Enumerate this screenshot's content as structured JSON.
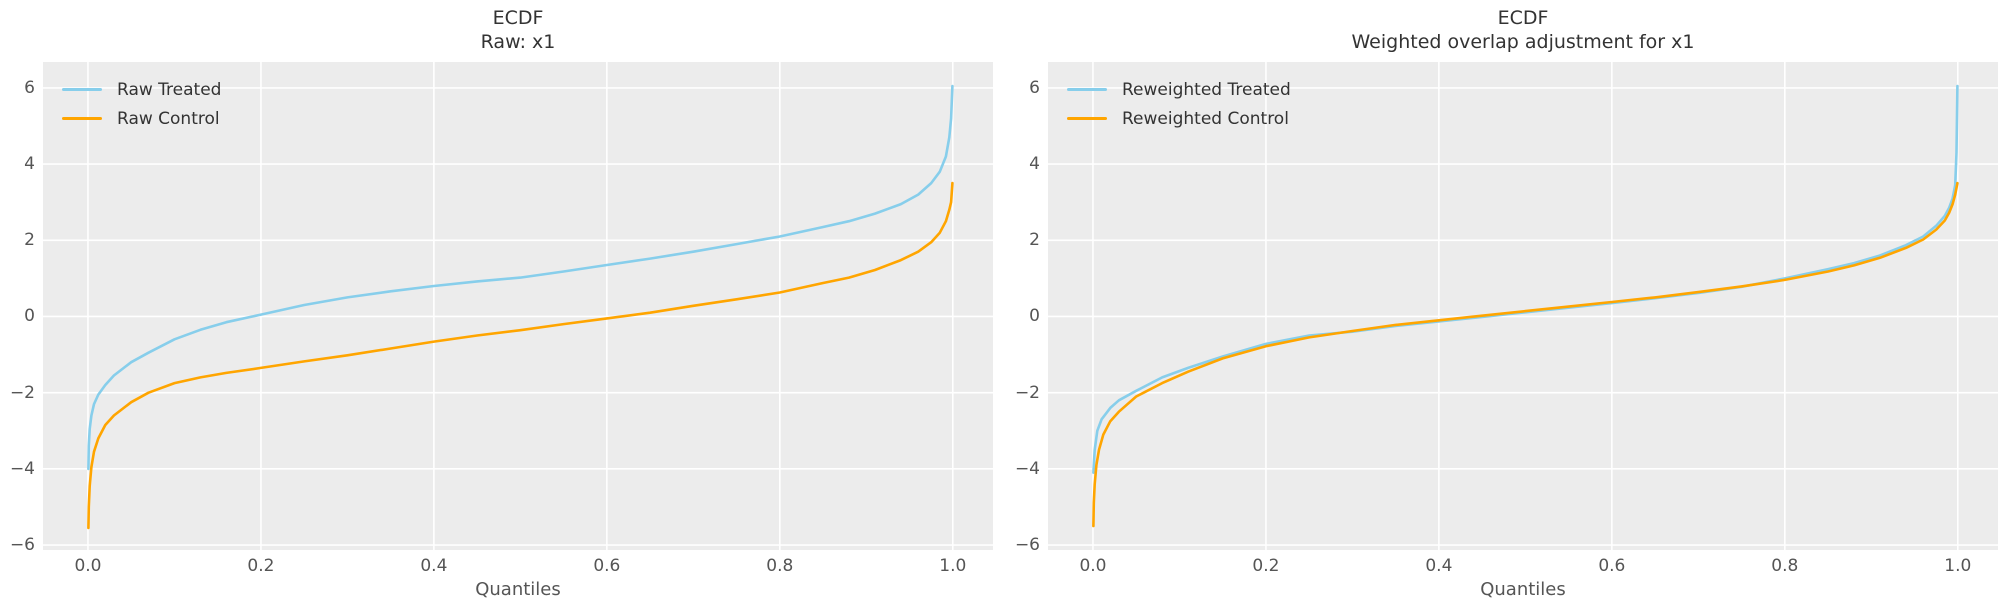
{
  "figure": {
    "background": "#ffffff"
  },
  "style": {
    "axes_background": "#ececec",
    "grid_color": "#ffffff",
    "tick_label_color": "#555555",
    "title_color": "#333333",
    "treated_color": "#87ceeb",
    "control_color": "#ffa500"
  },
  "chart_data": [
    {
      "type": "line",
      "title_lines": [
        "ECDF",
        "Raw: x1"
      ],
      "xlabel": "Quantiles",
      "xlim": [
        -0.052,
        1.0465
      ],
      "ylim": [
        -6.13,
        6.68
      ],
      "grid": true,
      "legend_position": "upper left",
      "x_tick_values": [
        0.0,
        0.2,
        0.4,
        0.6,
        0.8,
        1.0
      ],
      "x_tick_labels": [
        "0.0",
        "0.2",
        "0.4",
        "0.6",
        "0.8",
        "1.0"
      ],
      "y_tick_values": [
        -6,
        -4,
        -2,
        0,
        2,
        4,
        6
      ],
      "y_tick_labels": [
        "−6",
        "−4",
        "−2",
        "0",
        "2",
        "4",
        "6"
      ],
      "series": [
        {
          "name": "Raw Treated",
          "color": "#87ceeb",
          "points": [
            [
              0.0005,
              -4.0
            ],
            [
              0.001,
              -3.4
            ],
            [
              0.002,
              -2.95
            ],
            [
              0.004,
              -2.6
            ],
            [
              0.007,
              -2.3
            ],
            [
              0.012,
              -2.05
            ],
            [
              0.02,
              -1.8
            ],
            [
              0.03,
              -1.55
            ],
            [
              0.05,
              -1.2
            ],
            [
              0.07,
              -0.95
            ],
            [
              0.1,
              -0.6
            ],
            [
              0.13,
              -0.35
            ],
            [
              0.16,
              -0.15
            ],
            [
              0.2,
              0.05
            ],
            [
              0.25,
              0.3
            ],
            [
              0.3,
              0.5
            ],
            [
              0.35,
              0.66
            ],
            [
              0.4,
              0.8
            ],
            [
              0.45,
              0.92
            ],
            [
              0.5,
              1.02
            ],
            [
              0.55,
              1.18
            ],
            [
              0.6,
              1.35
            ],
            [
              0.65,
              1.52
            ],
            [
              0.7,
              1.7
            ],
            [
              0.75,
              1.9
            ],
            [
              0.8,
              2.1
            ],
            [
              0.85,
              2.35
            ],
            [
              0.88,
              2.5
            ],
            [
              0.91,
              2.7
            ],
            [
              0.94,
              2.95
            ],
            [
              0.96,
              3.2
            ],
            [
              0.975,
              3.5
            ],
            [
              0.985,
              3.8
            ],
            [
              0.992,
              4.2
            ],
            [
              0.996,
              4.7
            ],
            [
              0.998,
              5.2
            ],
            [
              0.9995,
              6.05
            ]
          ]
        },
        {
          "name": "Raw Control",
          "color": "#ffa500",
          "points": [
            [
              0.0005,
              -5.55
            ],
            [
              0.001,
              -5.0
            ],
            [
              0.002,
              -4.45
            ],
            [
              0.004,
              -3.95
            ],
            [
              0.007,
              -3.55
            ],
            [
              0.012,
              -3.2
            ],
            [
              0.02,
              -2.85
            ],
            [
              0.03,
              -2.6
            ],
            [
              0.05,
              -2.25
            ],
            [
              0.07,
              -2.0
            ],
            [
              0.1,
              -1.75
            ],
            [
              0.13,
              -1.6
            ],
            [
              0.16,
              -1.48
            ],
            [
              0.2,
              -1.35
            ],
            [
              0.25,
              -1.18
            ],
            [
              0.3,
              -1.02
            ],
            [
              0.35,
              -0.84
            ],
            [
              0.4,
              -0.66
            ],
            [
              0.45,
              -0.5
            ],
            [
              0.5,
              -0.36
            ],
            [
              0.55,
              -0.2
            ],
            [
              0.6,
              -0.05
            ],
            [
              0.65,
              0.1
            ],
            [
              0.7,
              0.28
            ],
            [
              0.75,
              0.45
            ],
            [
              0.8,
              0.63
            ],
            [
              0.85,
              0.88
            ],
            [
              0.88,
              1.02
            ],
            [
              0.91,
              1.22
            ],
            [
              0.94,
              1.48
            ],
            [
              0.96,
              1.7
            ],
            [
              0.975,
              1.95
            ],
            [
              0.985,
              2.2
            ],
            [
              0.992,
              2.5
            ],
            [
              0.996,
              2.8
            ],
            [
              0.998,
              3.0
            ],
            [
              0.9995,
              3.5
            ]
          ]
        }
      ]
    },
    {
      "type": "line",
      "title_lines": [
        "ECDF",
        "Weighted overlap adjustment for x1"
      ],
      "xlabel": "Quantiles",
      "xlim": [
        -0.052,
        1.0465
      ],
      "ylim": [
        -6.13,
        6.68
      ],
      "grid": true,
      "legend_position": "upper left",
      "x_tick_values": [
        0.0,
        0.2,
        0.4,
        0.6,
        0.8,
        1.0
      ],
      "x_tick_labels": [
        "0.0",
        "0.2",
        "0.4",
        "0.6",
        "0.8",
        "1.0"
      ],
      "y_tick_values": [
        -6,
        -4,
        -2,
        0,
        2,
        4,
        6
      ],
      "y_tick_labels": [
        "−6",
        "−4",
        "−2",
        "0",
        "2",
        "4",
        "6"
      ],
      "series": [
        {
          "name": "Reweighted Treated",
          "color": "#87ceeb",
          "points": [
            [
              0.0005,
              -4.1
            ],
            [
              0.002,
              -3.5
            ],
            [
              0.005,
              -3.0
            ],
            [
              0.01,
              -2.7
            ],
            [
              0.02,
              -2.4
            ],
            [
              0.03,
              -2.2
            ],
            [
              0.05,
              -1.95
            ],
            [
              0.08,
              -1.6
            ],
            [
              0.11,
              -1.35
            ],
            [
              0.15,
              -1.05
            ],
            [
              0.2,
              -0.72
            ],
            [
              0.25,
              -0.5
            ],
            [
              0.3,
              -0.4
            ],
            [
              0.35,
              -0.25
            ],
            [
              0.4,
              -0.13
            ],
            [
              0.45,
              -0.01
            ],
            [
              0.5,
              0.11
            ],
            [
              0.55,
              0.23
            ],
            [
              0.6,
              0.35
            ],
            [
              0.65,
              0.48
            ],
            [
              0.7,
              0.62
            ],
            [
              0.75,
              0.78
            ],
            [
              0.8,
              1.0
            ],
            [
              0.85,
              1.24
            ],
            [
              0.88,
              1.4
            ],
            [
              0.91,
              1.6
            ],
            [
              0.94,
              1.87
            ],
            [
              0.96,
              2.1
            ],
            [
              0.975,
              2.38
            ],
            [
              0.985,
              2.64
            ],
            [
              0.99,
              2.85
            ],
            [
              0.994,
              3.1
            ],
            [
              0.997,
              3.45
            ],
            [
              0.9985,
              4.3
            ],
            [
              0.9995,
              6.05
            ]
          ]
        },
        {
          "name": "Reweighted Control",
          "color": "#ffa500",
          "points": [
            [
              0.0005,
              -5.5
            ],
            [
              0.001,
              -4.9
            ],
            [
              0.002,
              -4.4
            ],
            [
              0.004,
              -3.9
            ],
            [
              0.007,
              -3.5
            ],
            [
              0.012,
              -3.1
            ],
            [
              0.02,
              -2.75
            ],
            [
              0.03,
              -2.5
            ],
            [
              0.05,
              -2.1
            ],
            [
              0.08,
              -1.75
            ],
            [
              0.11,
              -1.45
            ],
            [
              0.15,
              -1.1
            ],
            [
              0.2,
              -0.78
            ],
            [
              0.25,
              -0.55
            ],
            [
              0.3,
              -0.38
            ],
            [
              0.35,
              -0.22
            ],
            [
              0.4,
              -0.1
            ],
            [
              0.45,
              0.02
            ],
            [
              0.5,
              0.14
            ],
            [
              0.55,
              0.26
            ],
            [
              0.6,
              0.38
            ],
            [
              0.65,
              0.5
            ],
            [
              0.7,
              0.64
            ],
            [
              0.75,
              0.79
            ],
            [
              0.8,
              0.96
            ],
            [
              0.85,
              1.18
            ],
            [
              0.88,
              1.34
            ],
            [
              0.91,
              1.54
            ],
            [
              0.94,
              1.8
            ],
            [
              0.96,
              2.02
            ],
            [
              0.975,
              2.28
            ],
            [
              0.985,
              2.52
            ],
            [
              0.99,
              2.72
            ],
            [
              0.994,
              2.95
            ],
            [
              0.997,
              3.2
            ],
            [
              0.9995,
              3.5
            ]
          ]
        }
      ]
    }
  ]
}
